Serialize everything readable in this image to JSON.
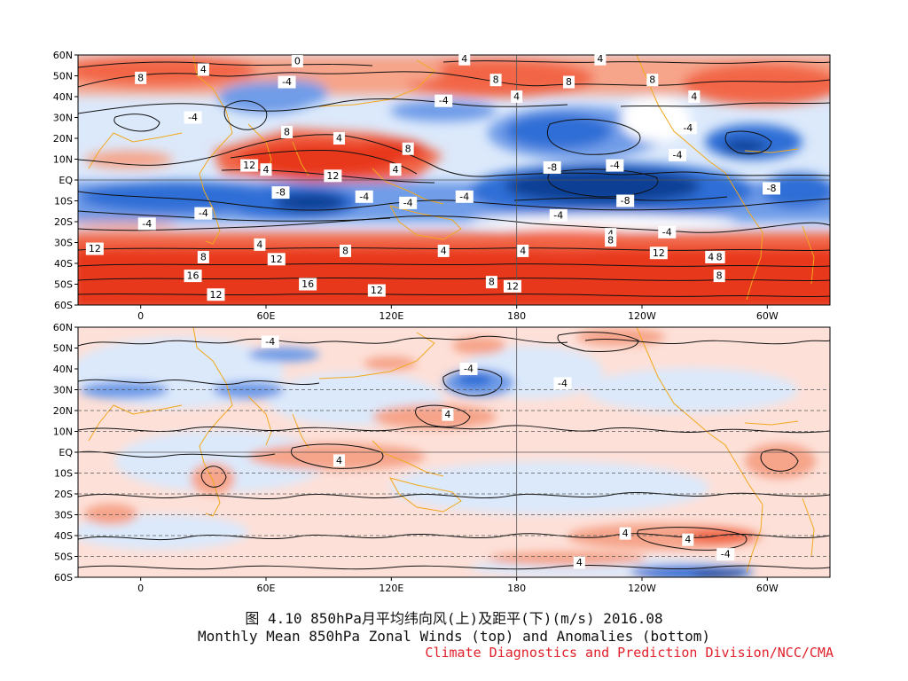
{
  "figure": {
    "caption_cn": "图 4.10  850hPa月平均纬向风(上)及距平(下)(m/s)  2016.08",
    "caption_en": "Monthly Mean 850hPa Zonal Winds (top) and Anomalies (bottom)",
    "credit": "Climate Diagnostics and Prediction Division/NCC/CMA"
  },
  "axes": {
    "lat_labels": [
      "60N",
      "50N",
      "40N",
      "30N",
      "20N",
      "10N",
      "EQ",
      "10S",
      "20S",
      "30S",
      "40S",
      "50S",
      "60S"
    ],
    "lon_labels": [
      "0",
      "60E",
      "120E",
      "180",
      "120W",
      "60W"
    ],
    "lon_range": [
      -30,
      330
    ],
    "lat_range": [
      -60,
      60
    ]
  },
  "colors": {
    "strong_east": "#0d3f95",
    "east_mid": "#2f6ed6",
    "east_light": "#6f9ce8",
    "east_pale": "#dce9fb",
    "west_pale": "#fde0d8",
    "west_light": "#f6a48a",
    "west_mid": "#f26647",
    "strong_west": "#e8391c",
    "coast": "#f2a81d",
    "contour": "#111111"
  },
  "panels": [
    {
      "id": "top",
      "description": "850hPa monthly mean zonal wind",
      "contour_labels": [
        {
          "lon": 0,
          "lat": 49,
          "text": "8"
        },
        {
          "lon": 30,
          "lat": 53,
          "text": "4"
        },
        {
          "lon": 75,
          "lat": 57,
          "text": "0"
        },
        {
          "lon": 155,
          "lat": 58,
          "text": "4"
        },
        {
          "lon": 220,
          "lat": 58,
          "text": "4"
        },
        {
          "lon": 205,
          "lat": 47,
          "text": "8"
        },
        {
          "lon": 170,
          "lat": 48,
          "text": "8"
        },
        {
          "lon": 245,
          "lat": 48,
          "text": "8"
        },
        {
          "lon": 70,
          "lat": 47,
          "text": "-4"
        },
        {
          "lon": 145,
          "lat": 38,
          "text": "-4"
        },
        {
          "lon": 180,
          "lat": 40,
          "text": "4"
        },
        {
          "lon": 265,
          "lat": 40,
          "text": "4"
        },
        {
          "lon": 25,
          "lat": 30,
          "text": "-4"
        },
        {
          "lon": 70,
          "lat": 23,
          "text": "8"
        },
        {
          "lon": 95,
          "lat": 20,
          "text": "4"
        },
        {
          "lon": 128,
          "lat": 15,
          "text": "8"
        },
        {
          "lon": 262,
          "lat": 25,
          "text": "-4"
        },
        {
          "lon": 52,
          "lat": 7,
          "text": "12"
        },
        {
          "lon": 60,
          "lat": 5,
          "text": "4"
        },
        {
          "lon": 92,
          "lat": 2,
          "text": "12"
        },
        {
          "lon": 122,
          "lat": 5,
          "text": "4"
        },
        {
          "lon": 197,
          "lat": 6,
          "text": "-8"
        },
        {
          "lon": 227,
          "lat": 7,
          "text": "-4"
        },
        {
          "lon": 257,
          "lat": 12,
          "text": "-4"
        },
        {
          "lon": 67,
          "lat": -6,
          "text": "-8"
        },
        {
          "lon": 107,
          "lat": -8,
          "text": "-4"
        },
        {
          "lon": 128,
          "lat": -11,
          "text": "-4"
        },
        {
          "lon": 155,
          "lat": -8,
          "text": "-4"
        },
        {
          "lon": 232,
          "lat": -10,
          "text": "-8"
        },
        {
          "lon": 302,
          "lat": -4,
          "text": "-8"
        },
        {
          "lon": 30,
          "lat": -16,
          "text": "-4"
        },
        {
          "lon": 3,
          "lat": -21,
          "text": "-4"
        },
        {
          "lon": 200,
          "lat": -17,
          "text": "-4"
        },
        {
          "lon": 225,
          "lat": -26,
          "text": "4"
        },
        {
          "lon": 252,
          "lat": -25,
          "text": "-4"
        },
        {
          "lon": -22,
          "lat": -33,
          "text": "12"
        },
        {
          "lon": 57,
          "lat": -31,
          "text": "4"
        },
        {
          "lon": 98,
          "lat": -34,
          "text": "8"
        },
        {
          "lon": 145,
          "lat": -34,
          "text": "4"
        },
        {
          "lon": 183,
          "lat": -34,
          "text": "4"
        },
        {
          "lon": 225,
          "lat": -29,
          "text": "8"
        },
        {
          "lon": 248,
          "lat": -35,
          "text": "12"
        },
        {
          "lon": 30,
          "lat": -37,
          "text": "8"
        },
        {
          "lon": 65,
          "lat": -38,
          "text": "12"
        },
        {
          "lon": 273,
          "lat": -37,
          "text": "4"
        },
        {
          "lon": 277,
          "lat": -37,
          "text": "8"
        },
        {
          "lon": 25,
          "lat": -46,
          "text": "16"
        },
        {
          "lon": 80,
          "lat": -50,
          "text": "16"
        },
        {
          "lon": 168,
          "lat": -49,
          "text": "8"
        },
        {
          "lon": 178,
          "lat": -51,
          "text": "12"
        },
        {
          "lon": 277,
          "lat": -46,
          "text": "8"
        },
        {
          "lon": 36,
          "lat": -55,
          "text": "12"
        },
        {
          "lon": 113,
          "lat": -53,
          "text": "12"
        }
      ]
    },
    {
      "id": "bottom",
      "description": "850hPa zonal wind anomalies",
      "contour_labels": [
        {
          "lon": 62,
          "lat": 53,
          "text": "-4"
        },
        {
          "lon": 157,
          "lat": 40,
          "text": "-4"
        },
        {
          "lon": 202,
          "lat": 33,
          "text": "-4"
        },
        {
          "lon": 147,
          "lat": 18,
          "text": "4"
        },
        {
          "lon": 95,
          "lat": -4,
          "text": "4"
        },
        {
          "lon": 232,
          "lat": -39,
          "text": "4"
        },
        {
          "lon": 262,
          "lat": -42,
          "text": "4"
        },
        {
          "lon": 280,
          "lat": -49,
          "text": "-4"
        },
        {
          "lon": 210,
          "lat": -53,
          "text": "4"
        }
      ]
    }
  ]
}
